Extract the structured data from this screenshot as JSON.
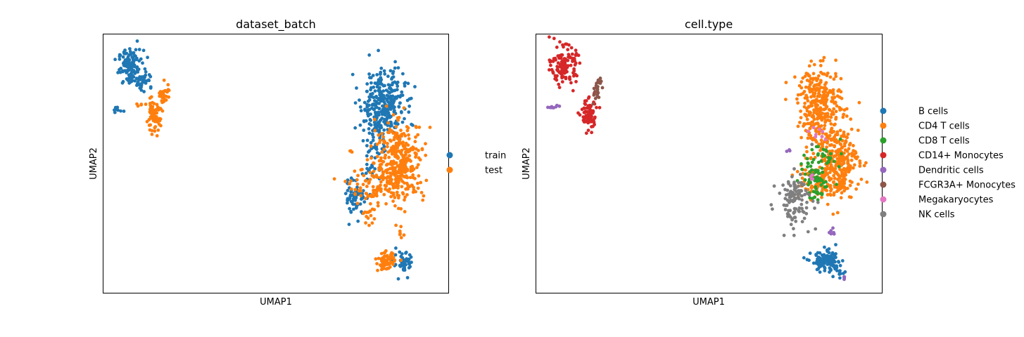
{
  "chart_data": [
    {
      "type": "scatter",
      "title": "dataset_batch",
      "xlabel": "UMAP1",
      "ylabel": "UMAP2",
      "xlim": [
        0,
        100
      ],
      "ylim": [
        0,
        100
      ],
      "grid": false,
      "legend_position": "right",
      "series": [
        {
          "name": "train",
          "color": "#1f77b4",
          "clusters": [
            {
              "cx": 8,
              "cy": 87,
              "sx": 1.8,
              "sy": 3.5,
              "n": 130
            },
            {
              "cx": 12,
              "cy": 82,
              "sx": 1.2,
              "sy": 2.0,
              "n": 30
            },
            {
              "cx": 4.5,
              "cy": 71,
              "sx": 1.2,
              "sy": 0.6,
              "n": 8
            },
            {
              "cx": 81,
              "cy": 73,
              "sx": 3.2,
              "sy": 7.0,
              "n": 300
            },
            {
              "cx": 78,
              "cy": 56,
              "sx": 1.3,
              "sy": 8.0,
              "n": 60
            },
            {
              "cx": 73,
              "cy": 37,
              "sx": 1.5,
              "sy": 3.5,
              "n": 60
            },
            {
              "cx": 87,
              "cy": 11,
              "sx": 1.5,
              "sy": 2.2,
              "n": 45
            }
          ]
        },
        {
          "name": "test",
          "color": "#ff7f0e",
          "clusters": [
            {
              "cx": 14.5,
              "cy": 68,
              "sx": 1.0,
              "sy": 2.8,
              "n": 70
            },
            {
              "cx": 17.5,
              "cy": 76,
              "sx": 0.9,
              "sy": 3.0,
              "n": 30
            },
            {
              "cx": 11,
              "cy": 73,
              "sx": 0.6,
              "sy": 0.3,
              "n": 5
            },
            {
              "cx": 86,
              "cy": 51,
              "sx": 3.5,
              "sy": 7.5,
              "n": 330
            },
            {
              "cx": 79,
              "cy": 41,
              "sx": 4.0,
              "sy": 3.5,
              "n": 90
            },
            {
              "cx": 77,
              "cy": 31,
              "sx": 1.0,
              "sy": 2.0,
              "n": 15
            },
            {
              "cx": 82,
              "cy": 12,
              "sx": 1.2,
              "sy": 1.7,
              "n": 75
            },
            {
              "cx": 86,
              "cy": 23,
              "sx": 0.5,
              "sy": 0.8,
              "n": 5
            },
            {
              "cx": 72,
              "cy": 55,
              "sx": 0.3,
              "sy": 0.3,
              "n": 3
            }
          ]
        }
      ]
    },
    {
      "type": "scatter",
      "title": "cell.type",
      "xlabel": "UMAP1",
      "ylabel": "UMAP2",
      "xlim": [
        0,
        100
      ],
      "ylim": [
        0,
        100
      ],
      "grid": false,
      "legend_position": "right",
      "series": [
        {
          "name": "B cells",
          "color": "#1f77b4",
          "clusters": [
            {
              "cx": 84,
              "cy": 12,
              "sx": 2.2,
              "sy": 2.0,
              "n": 115
            },
            {
              "cx": 88,
              "cy": 8,
              "sx": 1.0,
              "sy": 1.0,
              "n": 10
            }
          ]
        },
        {
          "name": "CD4 T cells",
          "color": "#ff7f0e",
          "clusters": [
            {
              "cx": 82,
              "cy": 73,
              "sx": 3.2,
              "sy": 7.0,
              "n": 300
            },
            {
              "cx": 87,
              "cy": 51,
              "sx": 3.2,
              "sy": 7.0,
              "n": 300
            },
            {
              "cx": 80,
              "cy": 43,
              "sx": 3.0,
              "sy": 4.0,
              "n": 70
            }
          ]
        },
        {
          "name": "CD8 T cells",
          "color": "#2ca02c",
          "clusters": [
            {
              "cx": 81,
              "cy": 42,
              "sx": 1.3,
              "sy": 3.5,
              "n": 45
            },
            {
              "cx": 85,
              "cy": 52,
              "sx": 3.0,
              "sy": 4.0,
              "n": 30
            },
            {
              "cx": 79,
              "cy": 49,
              "sx": 1.5,
              "sy": 4.0,
              "n": 15
            }
          ]
        },
        {
          "name": "CD14+ Monocytes",
          "color": "#d62728",
          "clusters": [
            {
              "cx": 8,
              "cy": 88,
              "sx": 1.8,
              "sy": 3.5,
              "n": 130
            },
            {
              "cx": 15,
              "cy": 69,
              "sx": 1.2,
              "sy": 3.0,
              "n": 80
            }
          ]
        },
        {
          "name": "Dendritic cells",
          "color": "#9467bd",
          "clusters": [
            {
              "cx": 5,
              "cy": 72,
              "sx": 1.0,
              "sy": 0.6,
              "n": 10
            },
            {
              "cx": 86,
              "cy": 23,
              "sx": 0.4,
              "sy": 0.8,
              "n": 6
            },
            {
              "cx": 89,
              "cy": 6,
              "sx": 0.4,
              "sy": 0.5,
              "n": 4
            },
            {
              "cx": 73,
              "cy": 55,
              "sx": 0.3,
              "sy": 0.3,
              "n": 3
            }
          ]
        },
        {
          "name": "FCGR3A+ Monocytes",
          "color": "#8c564b",
          "clusters": [
            {
              "cx": 17.5,
              "cy": 78,
              "sx": 0.7,
              "sy": 3.0,
              "n": 25
            }
          ]
        },
        {
          "name": "Megakaryocytes",
          "color": "#e377c2",
          "clusters": [
            {
              "cx": 81,
              "cy": 62,
              "sx": 1.5,
              "sy": 1.5,
              "n": 8
            },
            {
              "cx": 80,
              "cy": 45,
              "sx": 0.6,
              "sy": 0.6,
              "n": 4
            }
          ]
        },
        {
          "name": "NK cells",
          "color": "#7f7f7f",
          "clusters": [
            {
              "cx": 75,
              "cy": 36,
              "sx": 2.5,
              "sy": 5.0,
              "n": 110
            }
          ]
        }
      ]
    }
  ]
}
